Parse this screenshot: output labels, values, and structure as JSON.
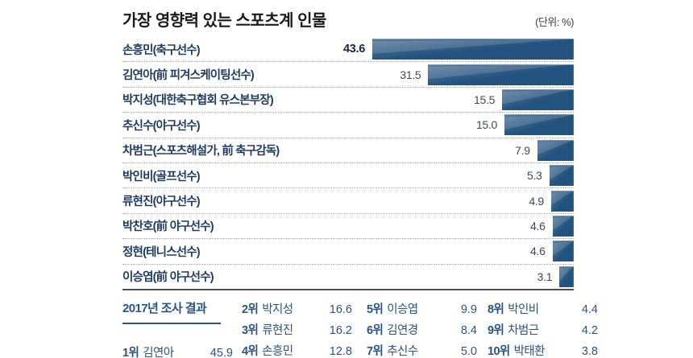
{
  "title": "가장 영향력 있는 스포츠계 인물",
  "unit_label": "(단위: %)",
  "chart_data": {
    "type": "bar",
    "orientation": "horizontal",
    "bar_alignment": "right",
    "unit": "%",
    "xlim": [
      0,
      43.6
    ],
    "title": "가장 영향력 있는 스포츠계 인물",
    "categories": [
      "손흥민(축구선수)",
      "김연아(前 피겨스케이팅선수)",
      "박지성(대한축구협회 유스본부장)",
      "추신수(야구선수)",
      "차범근(스포츠해설가, 前 축구감독)",
      "박인비(골프선수)",
      "류현진(야구선수)",
      "박찬호(前 야구선수)",
      "정현(테니스선수)",
      "이승엽(前 야구선수)"
    ],
    "values": [
      43.6,
      31.5,
      15.5,
      15.0,
      7.9,
      5.3,
      4.9,
      4.6,
      4.6,
      3.1
    ],
    "rows": [
      {
        "label": "손흥민(축구선수)",
        "value": "43.6",
        "emphasis": true
      },
      {
        "label": "김연아(前 피겨스케이팅선수)",
        "value": "31.5",
        "emphasis": false
      },
      {
        "label": "박지성(대한축구협회 유스본부장)",
        "value": "15.5",
        "emphasis": false
      },
      {
        "label": "추신수(야구선수)",
        "value": "15.0",
        "emphasis": false
      },
      {
        "label": "차범근(스포츠해설가, 前 축구감독)",
        "value": "7.9",
        "emphasis": false
      },
      {
        "label": "박인비(골프선수)",
        "value": "5.3",
        "emphasis": false
      },
      {
        "label": "류현진(야구선수)",
        "value": "4.9",
        "emphasis": false
      },
      {
        "label": "박찬호(前 야구선수)",
        "value": "4.6",
        "emphasis": false
      },
      {
        "label": "정현(테니스선수)",
        "value": "4.6",
        "emphasis": false
      },
      {
        "label": "이승엽(前 야구선수)",
        "value": "3.1",
        "emphasis": false
      }
    ]
  },
  "summary": {
    "heading": "2017년 조사 결과",
    "columns": [
      {
        "entries": [
          {
            "rank": "1위",
            "name": "김연아",
            "value": "45.9"
          }
        ]
      },
      {
        "entries": [
          {
            "rank": "2위",
            "name": "박지성",
            "value": "16.6"
          },
          {
            "rank": "3위",
            "name": "류현진",
            "value": "16.2"
          },
          {
            "rank": "4위",
            "name": "손흥민",
            "value": "12.8"
          }
        ]
      },
      {
        "entries": [
          {
            "rank": "5위",
            "name": "이승엽",
            "value": "9.9"
          },
          {
            "rank": "6위",
            "name": "김연경",
            "value": "8.4"
          },
          {
            "rank": "7위",
            "name": "추신수",
            "value": "5.0"
          }
        ]
      },
      {
        "entries": [
          {
            "rank": "8위",
            "name": "박인비",
            "value": "4.4"
          },
          {
            "rank": "9위",
            "name": "차범근",
            "value": "4.2"
          },
          {
            "rank": "10위",
            "name": "박태환",
            "value": "3.8"
          }
        ]
      }
    ]
  },
  "colors": {
    "bar": "#24527E",
    "name_text": "#1E3A5F",
    "value_text": "#3C4A5C",
    "summary_text": "#2B5385",
    "dotted_divider": "#A6A6A6",
    "baseline": "#4F4F4F"
  }
}
